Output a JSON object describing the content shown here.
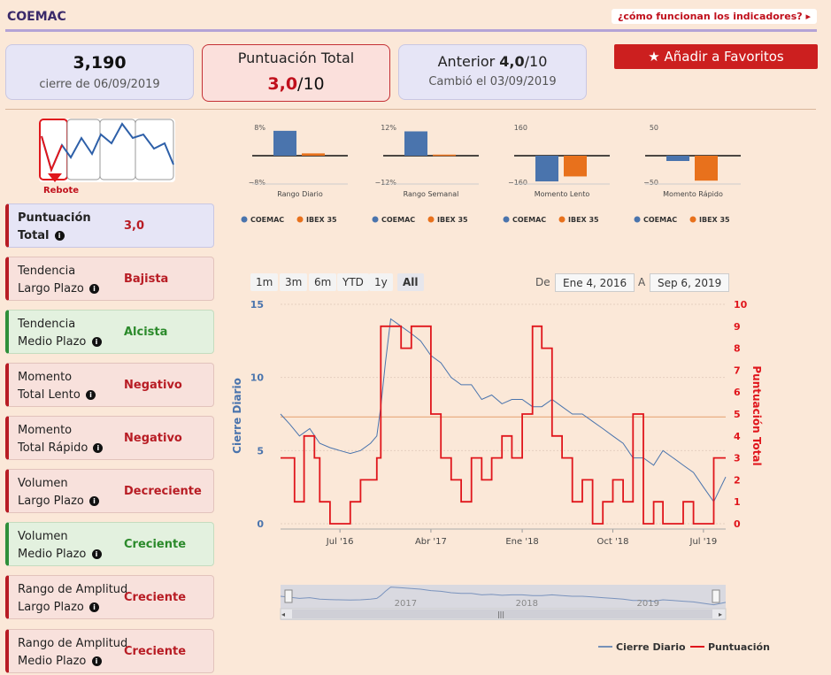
{
  "header": {
    "ticker": "COEMAC",
    "help_link": "¿cómo funcionan los indicadores?"
  },
  "cards": {
    "price": "3,190",
    "price_sub": "cierre de 06/09/2019",
    "score_title": "Puntuación Total",
    "score_value": "3,0",
    "score_suffix": "/10",
    "prev_prefix": "Anterior",
    "prev_value": "4,0",
    "prev_suffix": "/10",
    "prev_sub": "Cambió el 03/09/2019"
  },
  "fav_button": "Añadir a Favoritos",
  "logo_label": "Rebote",
  "indicators": [
    {
      "line1": "Puntuación",
      "line2": "Total",
      "value": "3,0",
      "kind": "neutral"
    },
    {
      "line1": "Tendencia",
      "line2": "Largo Plazo",
      "value": "Bajista",
      "kind": "neg"
    },
    {
      "line1": "Tendencia",
      "line2": "Medio Plazo",
      "value": "Alcista",
      "kind": "pos"
    },
    {
      "line1": "Momento",
      "line2": "Total Lento",
      "value": "Negativo",
      "kind": "neg"
    },
    {
      "line1": "Momento",
      "line2": "Total Rápido",
      "value": "Negativo",
      "kind": "neg"
    },
    {
      "line1": "Volumen",
      "line2": "Largo Plazo",
      "value": "Decreciente",
      "kind": "neg"
    },
    {
      "line1": "Volumen",
      "line2": "Medio Plazo",
      "value": "Creciente",
      "kind": "pos"
    },
    {
      "line1": "Rango de Amplitud",
      "line2": "Largo Plazo",
      "value": "Creciente",
      "kind": "neg"
    },
    {
      "line1": "Rango de Amplitud",
      "line2": "Medio Plazo",
      "value": "Creciente",
      "kind": "neg"
    }
  ],
  "colors": {
    "coemac": "#4a74ad",
    "ibex": "#e8711c",
    "red": "#e0161c",
    "accent": "#c0101c"
  },
  "range_buttons": [
    "1m",
    "3m",
    "6m",
    "YTD",
    "1y",
    "All"
  ],
  "date_range": {
    "from_label": "De",
    "from": "Ene 4, 2016",
    "to_label": "A",
    "to": "Sep 6, 2019"
  },
  "chart_data": [
    {
      "type": "bar",
      "xlabel": "Rango Diario",
      "ylim": [
        -8,
        8
      ],
      "tick_top": "8%",
      "tick_bottom": "−8%",
      "series": [
        {
          "name": "COEMAC",
          "values": [
            7.5
          ]
        },
        {
          "name": "IBEX 35",
          "values": [
            0.7
          ]
        }
      ]
    },
    {
      "type": "bar",
      "xlabel": "Rango Semanal",
      "ylim": [
        -12,
        12
      ],
      "tick_top": "12%",
      "tick_bottom": "−12%",
      "series": [
        {
          "name": "COEMAC",
          "values": [
            11
          ]
        },
        {
          "name": "IBEX 35",
          "values": [
            0.5
          ]
        }
      ]
    },
    {
      "type": "bar",
      "xlabel": "Momento Lento",
      "ylim": [
        -160,
        160
      ],
      "tick_top": "160",
      "tick_bottom": "−160",
      "series": [
        {
          "name": "COEMAC",
          "values": [
            -155
          ]
        },
        {
          "name": "IBEX 35",
          "values": [
            -125
          ]
        }
      ]
    },
    {
      "type": "bar",
      "xlabel": "Momento Rápido",
      "ylim": [
        -50,
        50
      ],
      "tick_top": "50",
      "tick_bottom": "−50",
      "series": [
        {
          "name": "COEMAC",
          "values": [
            -10
          ]
        },
        {
          "name": "IBEX 35",
          "values": [
            -47
          ]
        }
      ]
    },
    {
      "type": "line",
      "ylabel": "Cierre Diario",
      "y2label": "Puntuación Total",
      "ylim": [
        0,
        15
      ],
      "y2lim": [
        0,
        10
      ],
      "yticks": [
        "0",
        "5",
        "10",
        "15"
      ],
      "y2ticks": [
        "0",
        "1",
        "2",
        "3",
        "4",
        "5",
        "6",
        "7",
        "8",
        "9",
        "10"
      ],
      "xticks": [
        "Jul '16",
        "Abr '17",
        "Ene '18",
        "Oct '18",
        "Jul '19"
      ],
      "navigator_ticks": [
        "2017",
        "2018",
        "2019"
      ],
      "reference_line": 7.3,
      "legend": [
        "Cierre Diario",
        "Puntuación"
      ],
      "series": [
        {
          "name": "Cierre Diario",
          "x": [
            "2016-01-04",
            "2016-02-01",
            "2016-03-01",
            "2016-04-01",
            "2016-05-01",
            "2016-06-01",
            "2016-07-01",
            "2016-08-01",
            "2016-09-01",
            "2016-10-01",
            "2016-10-20",
            "2016-11-01",
            "2016-11-15",
            "2016-12-01",
            "2017-01-01",
            "2017-02-01",
            "2017-03-01",
            "2017-04-01",
            "2017-05-01",
            "2017-06-01",
            "2017-07-01",
            "2017-08-01",
            "2017-09-01",
            "2017-10-01",
            "2017-11-01",
            "2017-12-01",
            "2018-01-01",
            "2018-02-01",
            "2018-03-01",
            "2018-04-01",
            "2018-05-01",
            "2018-06-01",
            "2018-07-01",
            "2018-08-01",
            "2018-09-01",
            "2018-10-01",
            "2018-11-01",
            "2018-12-01",
            "2019-01-01",
            "2019-02-01",
            "2019-03-01",
            "2019-04-01",
            "2019-05-01",
            "2019-06-01",
            "2019-07-01",
            "2019-08-01",
            "2019-09-06"
          ],
          "values": [
            7.5,
            6.8,
            6.0,
            6.5,
            5.5,
            5.2,
            5.0,
            4.8,
            5.0,
            5.5,
            6.0,
            8.0,
            11.0,
            14.0,
            13.5,
            13.0,
            12.5,
            11.5,
            11.0,
            10.0,
            9.5,
            9.5,
            8.5,
            8.8,
            8.2,
            8.5,
            8.5,
            8.0,
            8.0,
            8.5,
            8.0,
            7.5,
            7.5,
            7.0,
            6.5,
            6.0,
            5.5,
            4.5,
            4.5,
            4.0,
            5.0,
            4.5,
            4.0,
            3.5,
            2.5,
            1.5,
            3.2
          ]
        },
        {
          "name": "Puntuación",
          "x": [
            "2016-01-04",
            "2016-02-15",
            "2016-03-15",
            "2016-04-15",
            "2016-05-01",
            "2016-06-01",
            "2016-07-01",
            "2016-08-01",
            "2016-09-01",
            "2016-10-01",
            "2016-10-20",
            "2016-11-01",
            "2016-12-01",
            "2017-01-01",
            "2017-02-01",
            "2017-03-01",
            "2017-04-01",
            "2017-05-01",
            "2017-06-01",
            "2017-07-01",
            "2017-08-01",
            "2017-09-01",
            "2017-10-01",
            "2017-11-01",
            "2017-12-01",
            "2018-01-01",
            "2018-02-01",
            "2018-03-01",
            "2018-04-01",
            "2018-05-01",
            "2018-06-01",
            "2018-07-01",
            "2018-08-01",
            "2018-09-01",
            "2018-10-01",
            "2018-11-01",
            "2018-12-01",
            "2019-01-01",
            "2019-02-01",
            "2019-03-01",
            "2019-04-01",
            "2019-05-01",
            "2019-06-01",
            "2019-07-01",
            "2019-08-01",
            "2019-09-06"
          ],
          "values": [
            3,
            1,
            4,
            3,
            1,
            0,
            0,
            1,
            2,
            2,
            3,
            9,
            9,
            8,
            9,
            9,
            5,
            3,
            2,
            1,
            3,
            2,
            3,
            4,
            3,
            5,
            9,
            8,
            4,
            3,
            1,
            2,
            0,
            1,
            2,
            1,
            5,
            0,
            1,
            0,
            0,
            1,
            0,
            0,
            3,
            3
          ]
        }
      ]
    }
  ]
}
